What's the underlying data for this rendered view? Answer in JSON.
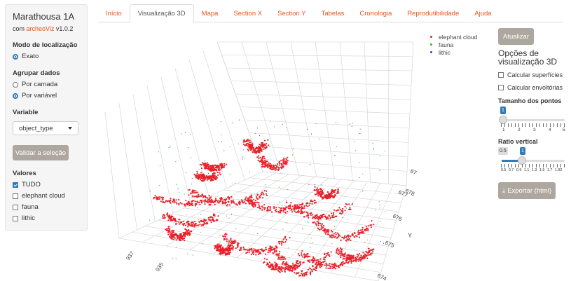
{
  "sidebar": {
    "title": "Marathousa 1A",
    "subtitle_prefix": "com",
    "subtitle_link": "archeoViz",
    "subtitle_version": "v1.0.2",
    "location_mode_label": "Modo de localização",
    "location_mode_options": [
      "Exato"
    ],
    "group_label": "Agrupar dados",
    "group_options": [
      "Por camada",
      "Por variável"
    ],
    "group_selected": "Por variável",
    "variable_label": "Variable",
    "variable_value": "object_type",
    "validate_label": "Validar a seleção",
    "values_label": "Valores",
    "values": [
      {
        "label": "TUDO",
        "checked": true
      },
      {
        "label": "elephant cloud",
        "checked": false
      },
      {
        "label": "fauna",
        "checked": false
      },
      {
        "label": "lithic",
        "checked": false
      }
    ]
  },
  "tabs": [
    "Início",
    "Visualização 3D",
    "Mapa",
    "Section X",
    "Section Y",
    "Tabelas",
    "Cronologia",
    "Reprodutibilidade",
    "Ajuda"
  ],
  "active_tab": "Visualização 3D",
  "plot": {
    "legend": [
      {
        "name": "elephant cloud",
        "color": "#e8202a"
      },
      {
        "name": "fauna",
        "color": "#33b233"
      },
      {
        "name": "lithic",
        "color": "#2b3fcf"
      }
    ],
    "y_axis_title": "Y",
    "y_ticks": [
      "674",
      "675",
      "676",
      "677",
      "678",
      "67"
    ],
    "x_ticks": [
      "937",
      "935"
    ]
  },
  "right_panel": {
    "update_label": "Atualizar",
    "options_title": "Opções de visualização 3D",
    "calc_surfaces": "Calcular superfícies",
    "calc_hulls": "Calcular envoltórias",
    "point_size_label": "Tamanho dos pontos",
    "point_size_value": "1",
    "point_size_ticks": [
      "1",
      "2",
      "3",
      "4",
      "5"
    ],
    "point_size_level": 0,
    "vertical_ratio_label": "Ratio vertical",
    "vertical_ratio_min_badge": "0.5",
    "vertical_ratio_value": "1",
    "vertical_ratio_ticks": [
      "0.5",
      "0.7",
      "0.9",
      "1.1",
      "1.3",
      "1.5",
      "1.7",
      "1.92"
    ],
    "vertical_ratio_level": 0.35,
    "export_label": "Exportar (html)",
    "export_icon": "download-icon"
  }
}
